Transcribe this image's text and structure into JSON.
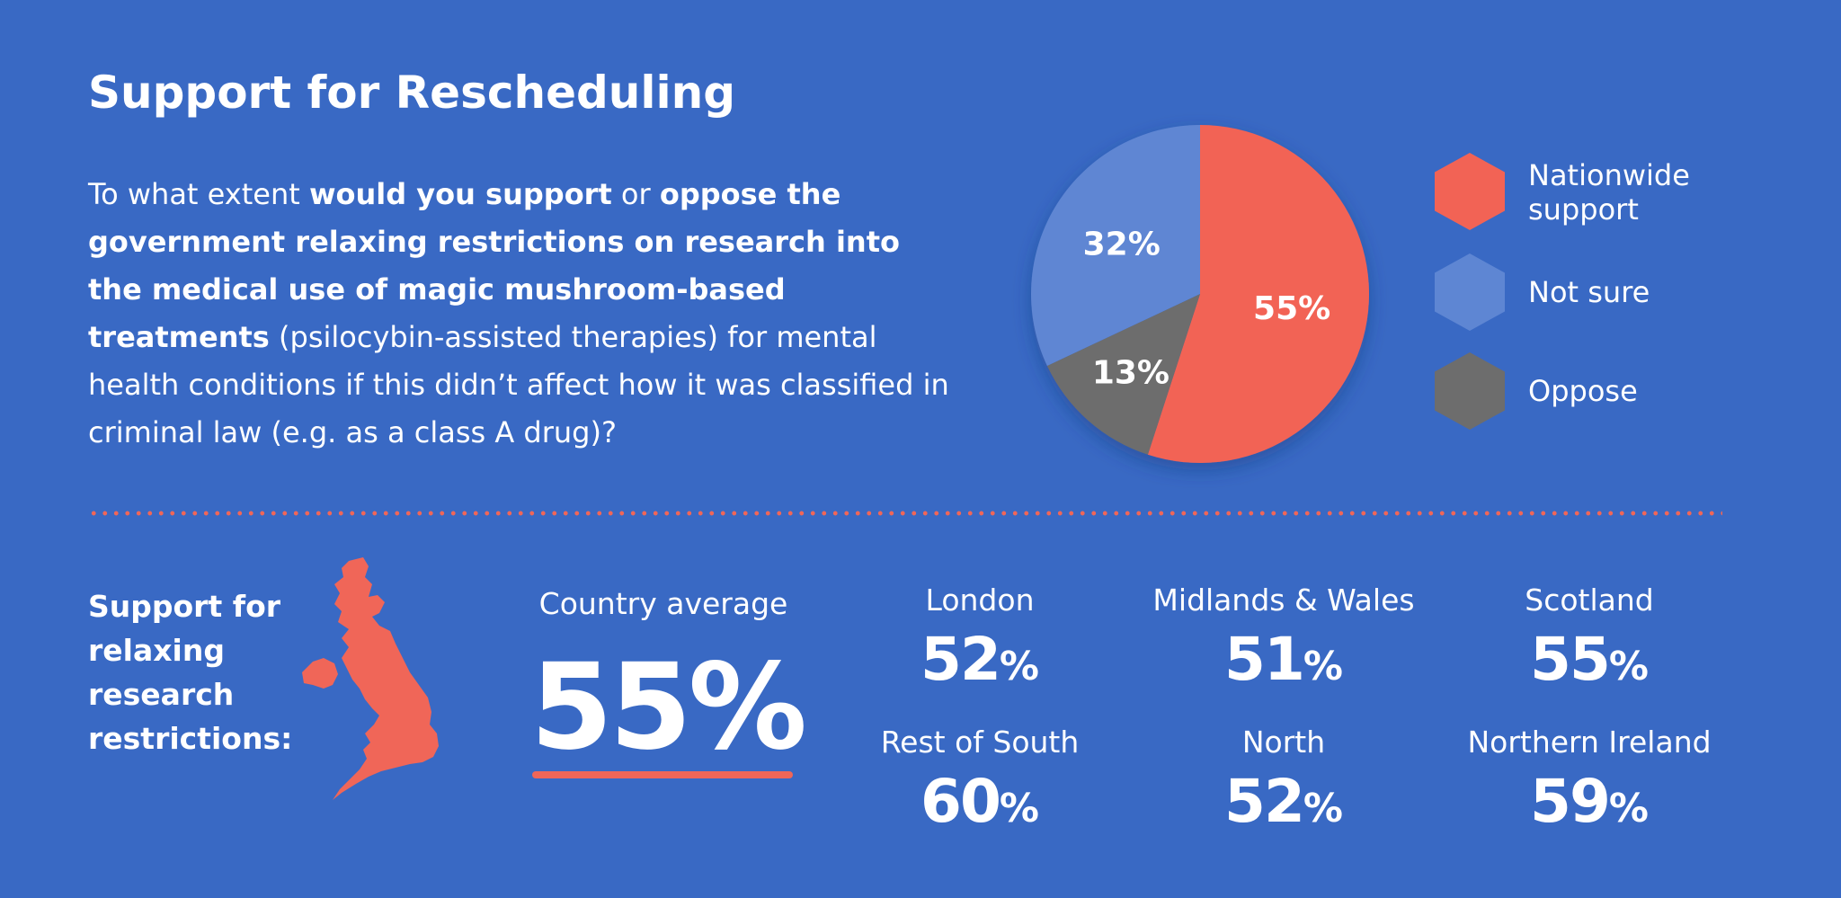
{
  "header": {
    "title": "Support for Rescheduling"
  },
  "question": {
    "parts": [
      {
        "text": "To what extent ",
        "bold": false
      },
      {
        "text": "would you support",
        "bold": true
      },
      {
        "text": " or ",
        "bold": false
      },
      {
        "text": "oppose the government relaxing restrictions on research into the medical use of magic mushroom-based treatments",
        "bold": true
      },
      {
        "text": " (psilocybin-assisted therapies) for mental health conditions if this didn’t affect how it was classified in criminal law (e.g. as a class A drug)?",
        "bold": false
      }
    ]
  },
  "chart_data": {
    "type": "pie",
    "title": "",
    "slices": [
      {
        "label": "Nationwide support",
        "value": 55,
        "display": "55%",
        "color": "#f26355"
      },
      {
        "label": "Oppose",
        "value": 13,
        "display": "13%",
        "color": "#6d6d6d"
      },
      {
        "label": "Not sure",
        "value": 32,
        "display": "32%",
        "color": "#5e86d3"
      }
    ],
    "legend_placement": "right"
  },
  "legend": {
    "items": [
      {
        "label": "Nationwide support",
        "color": "#f26355"
      },
      {
        "label": "Not sure",
        "color": "#5e86d3"
      },
      {
        "label": "Oppose",
        "color": "#6d6d6d"
      }
    ]
  },
  "regional": {
    "support_label": "Support for relaxing research restrictions:",
    "country_average_label": "Country average",
    "country_average_value": "55%",
    "map_icon": "uk-map-icon",
    "regions": [
      {
        "name": "London",
        "value": "52",
        "unit": "%"
      },
      {
        "name": "Midlands & Wales",
        "value": "51",
        "unit": "%"
      },
      {
        "name": "Scotland",
        "value": "55",
        "unit": "%"
      },
      {
        "name": "Rest of South",
        "value": "60",
        "unit": "%"
      },
      {
        "name": "North",
        "value": "52",
        "unit": "%"
      },
      {
        "name": "Northern Ireland",
        "value": "59",
        "unit": "%"
      }
    ]
  },
  "colors": {
    "background": "#3969c4",
    "accent": "#f06658",
    "gray": "#6d6d6d",
    "light_blue": "#5e86d3"
  }
}
